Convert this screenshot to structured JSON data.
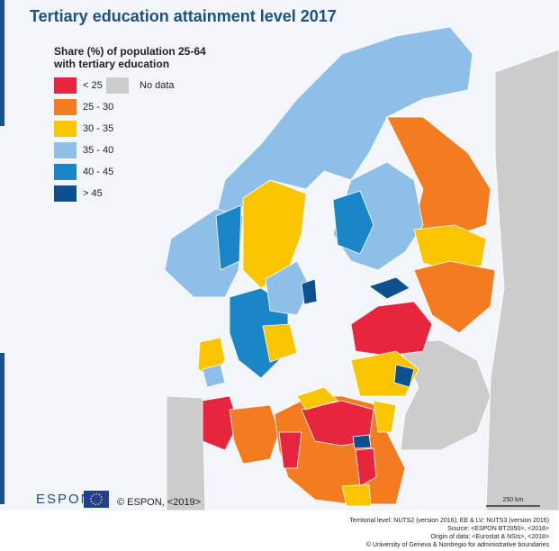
{
  "header": {
    "title": "Tertiary education attainment level 2017"
  },
  "legend": {
    "title": [
      "Share (%) of population 25-64",
      "with tertiary education"
    ],
    "items": [
      {
        "label": "< 25",
        "color": "#e8253f"
      },
      {
        "label": "25 - 30",
        "color": "#f47b20"
      },
      {
        "label": "30 - 35",
        "color": "#f8c500"
      },
      {
        "label": "35 - 40",
        "color": "#8dbfe8"
      },
      {
        "label": "40 - 45",
        "color": "#1a86c8"
      },
      {
        "label": "> 45",
        "color": "#0d4f8f"
      }
    ],
    "no_data": {
      "label": "No data",
      "color": "#cccccc"
    }
  },
  "logo": "ESPON",
  "copyright": "© ESPON, <2019>",
  "scale": "250 km",
  "footer": [
    "Territorial level: NUTS2 (version 2016); EE & LV: NUTS3 (version 2016)",
    "Source: <ESPON BT2050>, <2018>",
    "Origin of data: <Eurostat & NSIs>, <2018>",
    "© University of Geneva & Nordregio for administrative boundaries"
  ]
}
